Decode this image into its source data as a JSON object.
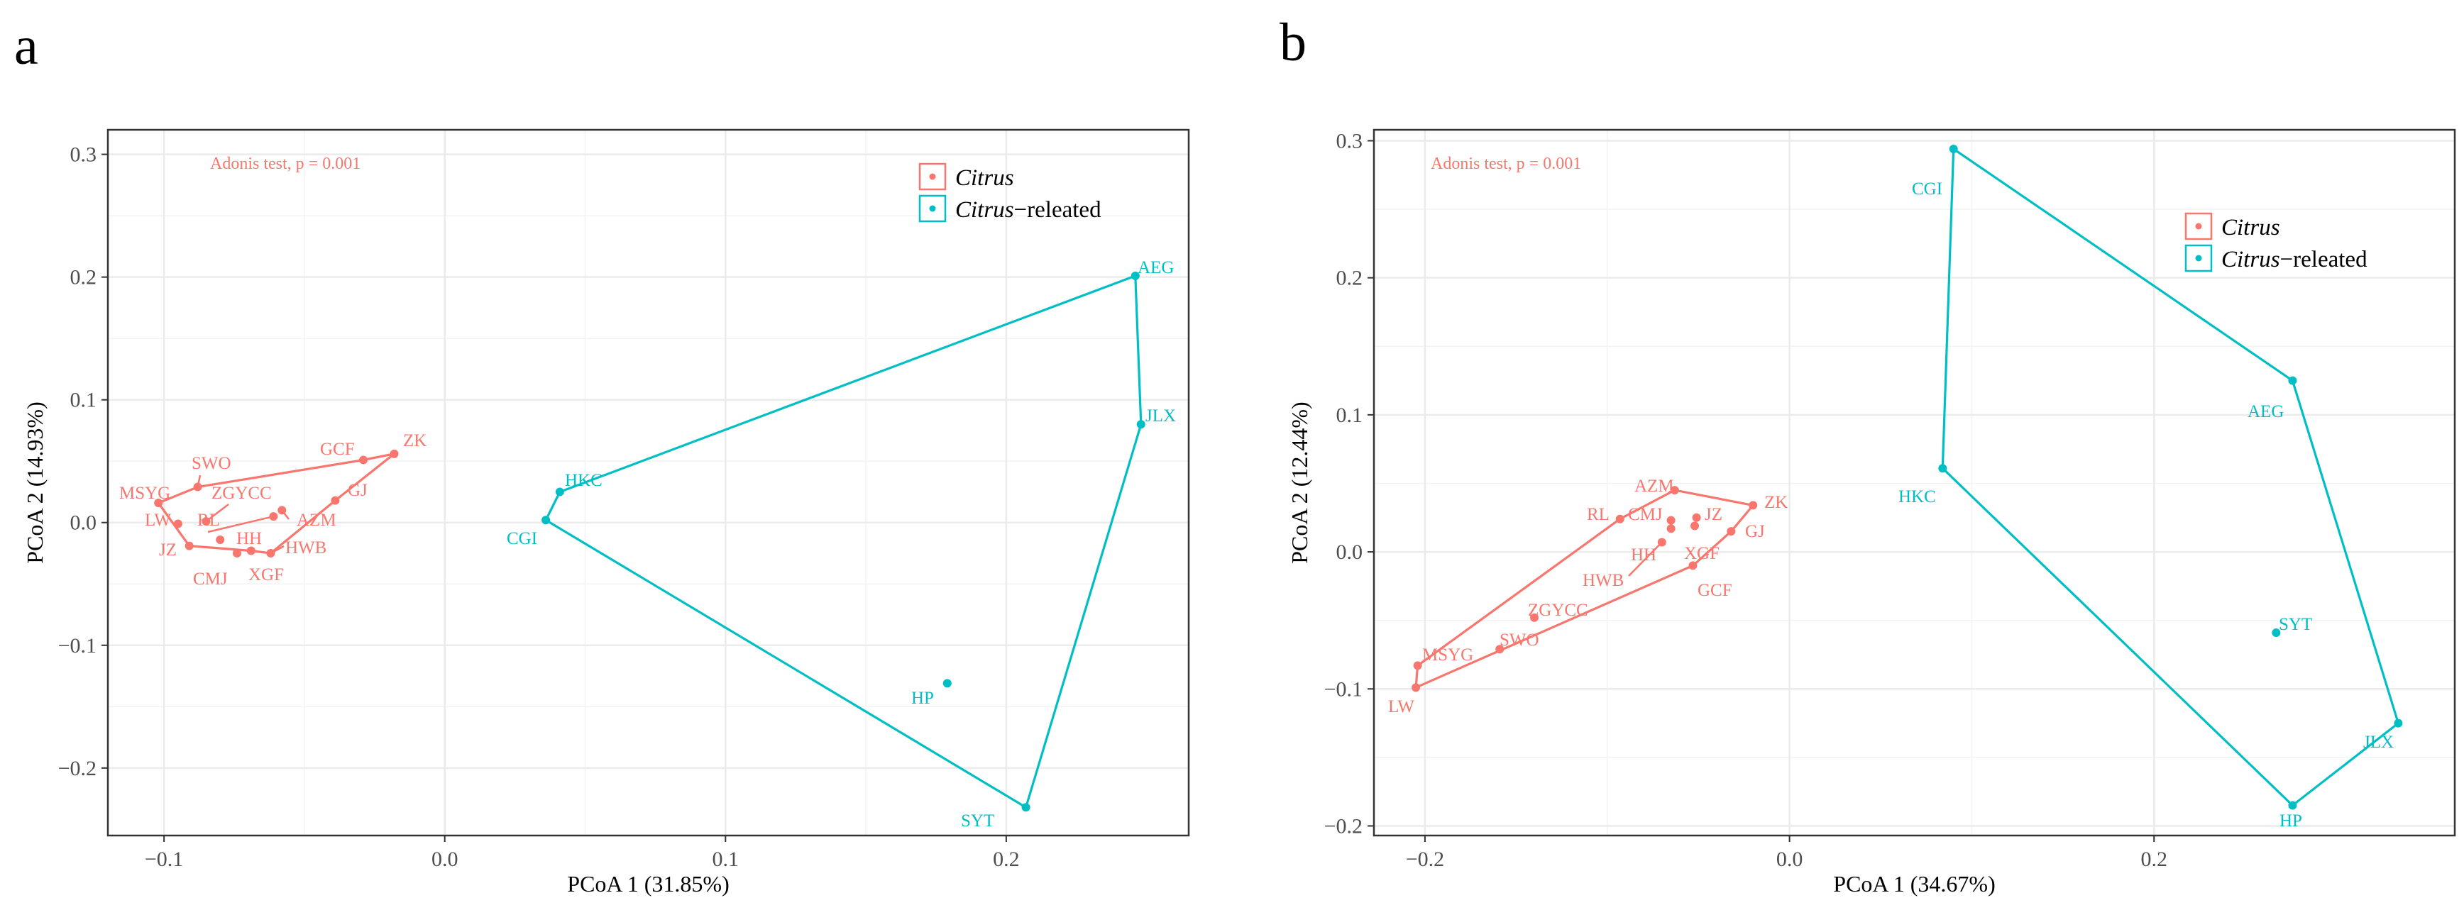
{
  "colors": {
    "citrus": "#f8766d",
    "related": "#00bfc4",
    "grid": "#ebebeb",
    "frame": "#333333"
  },
  "chart_data": [
    {
      "panel": "a",
      "type": "scatter",
      "title": "",
      "xlabel": "PCoA 1 (31.85%)",
      "ylabel": "PCoA 2 (14.93%)",
      "xlim": [
        -0.12,
        0.265
      ],
      "ylim": [
        -0.255,
        0.32
      ],
      "xticks": [
        -0.1,
        0.0,
        0.1,
        0.2
      ],
      "xtick_labels": [
        "−0.1",
        "0.0",
        "0.1",
        "0.2"
      ],
      "yticks": [
        -0.2,
        -0.1,
        0.0,
        0.1,
        0.2,
        0.3
      ],
      "ytick_labels": [
        "−0.2",
        "−0.1",
        "0.0",
        "0.1",
        "0.2",
        "0.3"
      ],
      "annotation": "Adonis test, p = 0.001",
      "legend": {
        "position": "top-right",
        "entries": [
          {
            "italic": "Citrus",
            "rest": ""
          },
          {
            "italic": "Citrus",
            "rest": "−releated"
          }
        ]
      },
      "series": [
        {
          "name": "Citrus",
          "points": [
            {
              "label": "ZK",
              "x": -0.018,
              "y": 0.056
            },
            {
              "label": "GCF",
              "x": -0.029,
              "y": 0.051
            },
            {
              "label": "GJ",
              "x": -0.039,
              "y": 0.018
            },
            {
              "label": "AZM",
              "x": -0.058,
              "y": 0.01
            },
            {
              "label": "HWB",
              "x": -0.062,
              "y": -0.025
            },
            {
              "label": "XGF",
              "x": -0.069,
              "y": -0.023
            },
            {
              "label": "CMJ",
              "x": -0.074,
              "y": -0.025
            },
            {
              "label": "HH",
              "x": -0.08,
              "y": -0.014
            },
            {
              "label": "RL",
              "x": -0.061,
              "y": 0.005
            },
            {
              "label": "ZGYCC",
              "x": -0.085,
              "y": 0.001
            },
            {
              "label": "SWO",
              "x": -0.088,
              "y": 0.029
            },
            {
              "label": "MSYG",
              "x": -0.102,
              "y": 0.016
            },
            {
              "label": "LW",
              "x": -0.095,
              "y": -0.001
            },
            {
              "label": "JZ",
              "x": -0.091,
              "y": -0.019
            }
          ],
          "hull": [
            "ZK",
            "GCF",
            "SWO",
            "MSYG",
            "JZ",
            "XGF",
            "HWB",
            "GJ"
          ]
        },
        {
          "name": "Citrus-releated",
          "points": [
            {
              "label": "AEG",
              "x": 0.246,
              "y": 0.201
            },
            {
              "label": "JLX",
              "x": 0.248,
              "y": 0.08
            },
            {
              "label": "HKC",
              "x": 0.041,
              "y": 0.025
            },
            {
              "label": "CGI",
              "x": 0.036,
              "y": 0.002
            },
            {
              "label": "HP",
              "x": 0.179,
              "y": -0.131
            },
            {
              "label": "SYT",
              "x": 0.207,
              "y": -0.232
            }
          ],
          "hull": [
            "AEG",
            "JLX",
            "SYT",
            "CGI",
            "HKC"
          ]
        }
      ]
    },
    {
      "panel": "b",
      "type": "scatter",
      "title": "",
      "xlabel": "PCoA 1 (34.67%)",
      "ylabel": "PCoA 2 (12.44%)",
      "xlim": [
        -0.228,
        0.365
      ],
      "ylim": [
        -0.207,
        0.308
      ],
      "xticks": [
        -0.2,
        0.0,
        0.2
      ],
      "xtick_labels": [
        "−0.2",
        "0.0",
        "0.2"
      ],
      "yticks": [
        -0.2,
        -0.1,
        0.0,
        0.1,
        0.2,
        0.3
      ],
      "ytick_labels": [
        "−0.2",
        "−0.1",
        "0.0",
        "0.1",
        "0.2",
        "0.3"
      ],
      "annotation": "Adonis test, p = 0.001",
      "legend": {
        "position": "top-right",
        "entries": [
          {
            "italic": "Citrus",
            "rest": ""
          },
          {
            "italic": "Citrus",
            "rest": "−releated"
          }
        ]
      },
      "series": [
        {
          "name": "Citrus",
          "points": [
            {
              "label": "ZK",
              "x": -0.02,
              "y": 0.034
            },
            {
              "label": "AZM",
              "x": -0.063,
              "y": 0.045
            },
            {
              "label": "RL",
              "x": -0.093,
              "y": 0.024
            },
            {
              "label": "CMJ",
              "x": -0.065,
              "y": 0.023
            },
            {
              "label": "JZ",
              "x": -0.051,
              "y": 0.025
            },
            {
              "label": "GJ",
              "x": -0.032,
              "y": 0.015
            },
            {
              "label": "HH",
              "x": -0.065,
              "y": 0.017
            },
            {
              "label": "XGF",
              "x": -0.052,
              "y": 0.019
            },
            {
              "label": "HWB",
              "x": -0.07,
              "y": 0.007
            },
            {
              "label": "GCF",
              "x": -0.053,
              "y": -0.01
            },
            {
              "label": "ZGYCC",
              "x": -0.14,
              "y": -0.048
            },
            {
              "label": "SWO",
              "x": -0.159,
              "y": -0.071
            },
            {
              "label": "MSYG",
              "x": -0.204,
              "y": -0.083
            },
            {
              "label": "LW",
              "x": -0.205,
              "y": -0.099
            }
          ],
          "hull": [
            "ZK",
            "AZM",
            "RL",
            "MSYG",
            "LW",
            "GCF",
            "GJ"
          ]
        },
        {
          "name": "Citrus-releated",
          "points": [
            {
              "label": "CGI",
              "x": 0.09,
              "y": 0.294
            },
            {
              "label": "AEG",
              "x": 0.276,
              "y": 0.125
            },
            {
              "label": "HKC",
              "x": 0.084,
              "y": 0.061
            },
            {
              "label": "SYT",
              "x": 0.267,
              "y": -0.059
            },
            {
              "label": "JLX",
              "x": 0.334,
              "y": -0.125
            },
            {
              "label": "HP",
              "x": 0.276,
              "y": -0.185
            }
          ],
          "hull": [
            "CGI",
            "AEG",
            "JLX",
            "HP",
            "HKC"
          ]
        }
      ]
    }
  ]
}
